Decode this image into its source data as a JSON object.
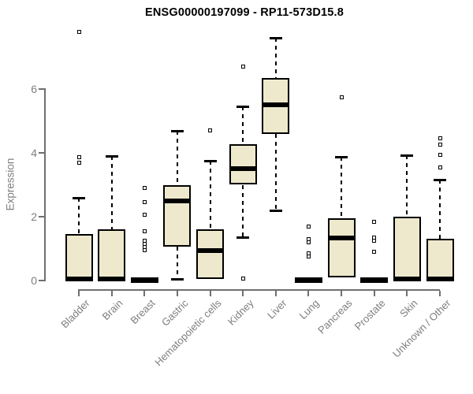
{
  "chart_data": {
    "type": "boxplot",
    "title": "ENSG00000197099 - RP11-573D15.8",
    "ylabel": "Expression",
    "yticks": [
      "0",
      "2",
      "4",
      "6"
    ],
    "ylim": [
      0,
      7.9
    ],
    "grid": false,
    "categories": [
      "Bladder",
      "Brain",
      "Breast",
      "Gastric",
      "Hematopoietic cells",
      "Kidney",
      "Liver",
      "Lung",
      "Pancreas",
      "Prostate",
      "Skin",
      "Unknown / Other"
    ],
    "boxes": [
      {
        "category": "Bladder",
        "q1": 0,
        "median": 0.05,
        "q3": 1.45,
        "whisker_low": 0,
        "whisker_high": 2.6,
        "outliers": [
          3.7,
          3.87,
          7.8
        ]
      },
      {
        "category": "Brain",
        "q1": 0,
        "median": 0.05,
        "q3": 1.6,
        "whisker_low": 0,
        "whisker_high": 3.9,
        "outliers": []
      },
      {
        "category": "Breast",
        "q1": 0,
        "median": 0,
        "q3": 0,
        "whisker_low": 0,
        "whisker_high": 0,
        "outliers": [
          0.95,
          1.05,
          1.15,
          1.25,
          1.55,
          2.05,
          2.45,
          2.9
        ]
      },
      {
        "category": "Gastric",
        "q1": 1.05,
        "median": 2.5,
        "q3": 3.0,
        "whisker_low": 0.05,
        "whisker_high": 4.7,
        "outliers": []
      },
      {
        "category": "Hematopoietic cells",
        "q1": 0.05,
        "median": 0.95,
        "q3": 1.6,
        "whisker_low": 0.05,
        "whisker_high": 3.75,
        "outliers": [
          4.7
        ]
      },
      {
        "category": "Kidney",
        "q1": 3.0,
        "median": 3.5,
        "q3": 4.28,
        "whisker_low": 1.35,
        "whisker_high": 5.45,
        "outliers": [
          0.05,
          6.7
        ]
      },
      {
        "category": "Liver",
        "q1": 4.6,
        "median": 5.5,
        "q3": 6.35,
        "whisker_low": 2.2,
        "whisker_high": 7.6,
        "outliers": []
      },
      {
        "category": "Lung",
        "q1": 0,
        "median": 0,
        "q3": 0,
        "whisker_low": 0,
        "whisker_high": 0,
        "outliers": [
          0.75,
          0.85,
          1.2,
          1.3,
          1.7
        ]
      },
      {
        "category": "Pancreas",
        "q1": 0.1,
        "median": 1.33,
        "q3": 1.95,
        "whisker_low": 0.1,
        "whisker_high": 3.88,
        "outliers": [
          5.75
        ]
      },
      {
        "category": "Prostate",
        "q1": 0,
        "median": 0,
        "q3": 0,
        "whisker_low": 0,
        "whisker_high": 0,
        "outliers": [
          0.9,
          1.25,
          1.35,
          1.85
        ]
      },
      {
        "category": "Skin",
        "q1": 0,
        "median": 0.05,
        "q3": 2.0,
        "whisker_low": 0,
        "whisker_high": 3.93,
        "outliers": []
      },
      {
        "category": "Unknown / Other",
        "q1": 0,
        "median": 0.05,
        "q3": 1.3,
        "whisker_low": 0,
        "whisker_high": 3.15,
        "outliers": [
          3.55,
          3.95,
          4.25,
          4.45
        ]
      }
    ],
    "colors": {
      "box_fill": "#EEE8CD",
      "box_border": "#000000",
      "median": "#000000",
      "axis": "#6f6f6f",
      "tick_label": "#7e7e7e",
      "title": "#000000",
      "background": "#ffffff"
    },
    "legend": null
  }
}
